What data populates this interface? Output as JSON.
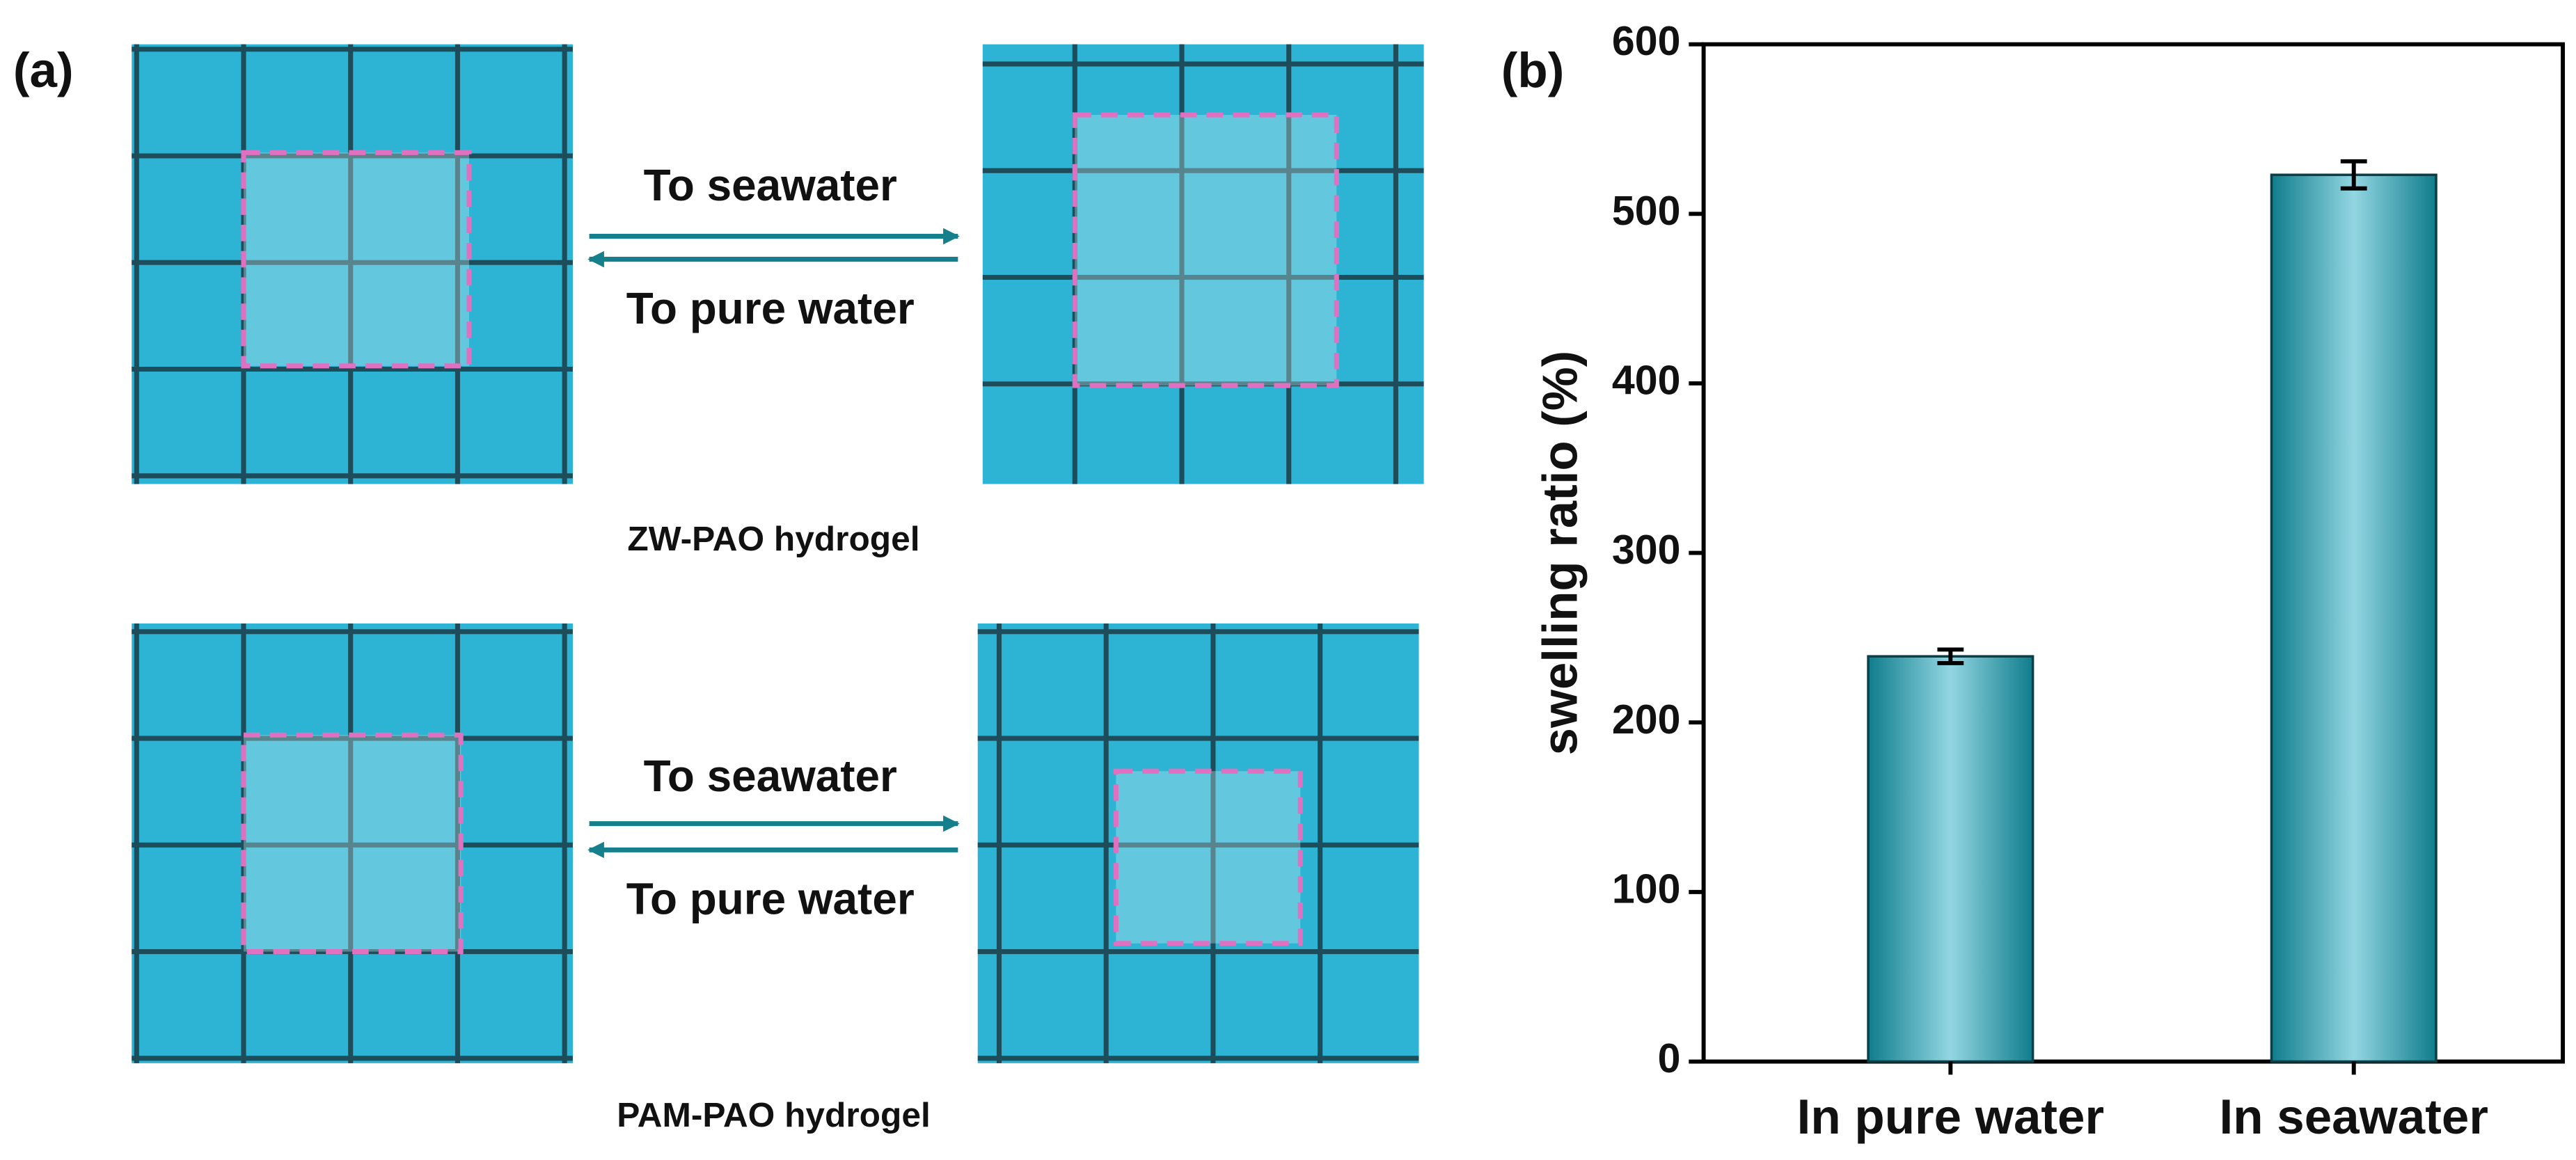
{
  "panel_a": {
    "label": "(a)",
    "rows": [
      {
        "forward": "To seawater",
        "backward": "To pure water",
        "caption": "ZW-PAO hydrogel"
      },
      {
        "forward": "To seawater",
        "backward": "To pure water",
        "caption": "PAM-PAO hydrogel"
      }
    ]
  },
  "chart_data": {
    "type": "bar",
    "panel_label": "(b)",
    "y_label": "swelling ratio (%)",
    "categories": [
      "In pure water",
      "In seawater"
    ],
    "values": [
      239,
      523
    ],
    "errors": [
      4,
      8
    ],
    "color": "#0f7d8c",
    "ylim": [
      0,
      600
    ],
    "yticks": [
      0,
      100,
      200,
      300,
      400,
      500,
      600
    ]
  }
}
